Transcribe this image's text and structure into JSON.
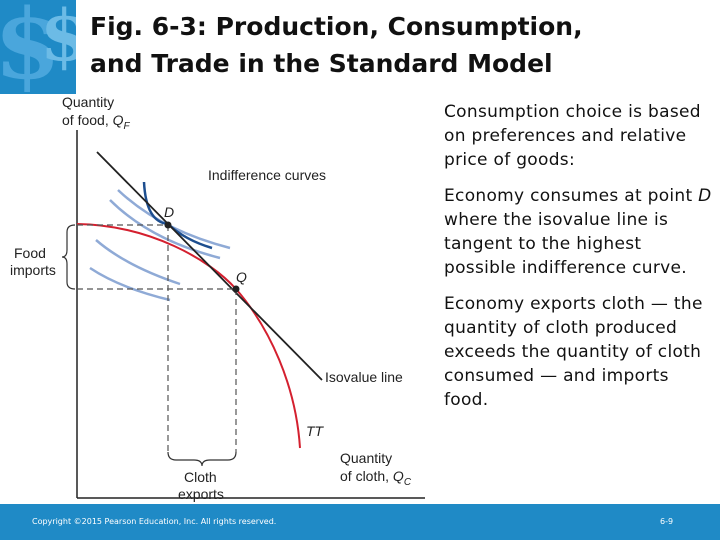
{
  "title": {
    "line1": "Fig. 6-3: Production, Consumption,",
    "line2": "and Trade in the Standard Model"
  },
  "diagram": {
    "y_axis_label": {
      "line1": "Quantity",
      "line2": "of food, ",
      "symbol": "Q",
      "subscript": "F"
    },
    "x_axis_label": {
      "line1": "Quantity",
      "line2": "of cloth, ",
      "symbol": "Q",
      "subscript": "C"
    },
    "indifference_label": "Indifference curves",
    "isovalue_label": "Isovalue line",
    "tt_label": "TT",
    "point_d": "D",
    "point_q": "Q",
    "food_imports": {
      "line1": "Food",
      "line2": "imports"
    },
    "cloth_exports": {
      "line1": "Cloth",
      "line2": "exports"
    },
    "colors": {
      "ppf": "#d4202f",
      "isovalue": "#222222",
      "indiff_highest": "#1d4e8f",
      "indiff_other": "#8faad6",
      "dashes": "#555555"
    }
  },
  "notes": [
    {
      "pre": "Consumption choice is based on preferences and relative price of goods:",
      "italic": "",
      "post": ""
    },
    {
      "pre": "Economy consumes at point ",
      "italic": "D",
      "post": " where the isovalue line is tangent to the highest possible indifference curve."
    },
    {
      "pre": "Economy exports cloth — the quantity of cloth produced exceeds the quantity of cloth consumed — and imports food.",
      "italic": "",
      "post": ""
    }
  ],
  "footer": {
    "copyright": "Copyright ©2015 Pearson Education, Inc. All rights reserved.",
    "page": "6-9"
  },
  "logo": {
    "icon": "dollar-logo-icon"
  }
}
